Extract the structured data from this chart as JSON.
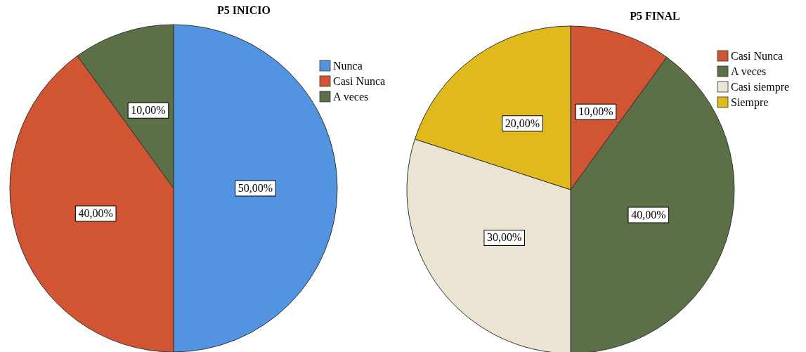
{
  "chart_data": [
    {
      "type": "pie",
      "title": "P5 INICIO",
      "categories": [
        "Nunca",
        "Casi Nunca",
        "A veces"
      ],
      "values": [
        50,
        40,
        10
      ],
      "colors": [
        "#5294e2",
        "#d15433",
        "#5b7046"
      ],
      "value_labels": [
        "50,00%",
        "40,00%",
        "10,00%"
      ],
      "legend": "top right"
    },
    {
      "type": "pie",
      "title": "P5 FINAL",
      "categories": [
        "Casi Nunca",
        "A veces",
        "Casi siempre",
        "Siempre"
      ],
      "values": [
        10,
        40,
        30,
        20
      ],
      "colors": [
        "#d15433",
        "#5b7046",
        "#ebe4d2",
        "#e0ba1c"
      ],
      "value_labels": [
        "10,00%",
        "40,00%",
        "30,00%",
        "20,00%"
      ],
      "legend": "top right"
    }
  ]
}
